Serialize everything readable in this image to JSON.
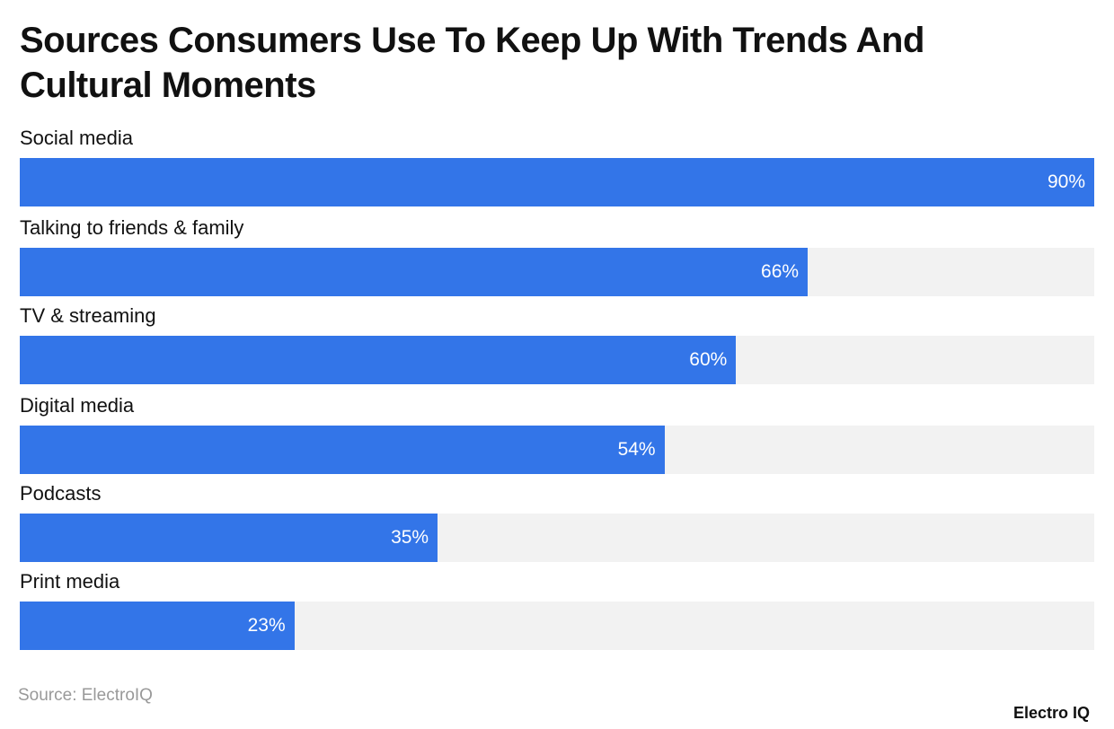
{
  "chart_data": {
    "type": "bar",
    "orientation": "horizontal",
    "title": "Sources Consumers Use To Keep Up With Trends And Cultural Moments",
    "categories": [
      "Social media",
      "Talking to friends & family",
      "TV & streaming",
      "Digital media",
      "Podcasts",
      "Print media"
    ],
    "values": [
      90,
      66,
      60,
      54,
      35,
      23
    ],
    "value_labels": [
      "90%",
      "66%",
      "60%",
      "54%",
      "35%",
      "23%"
    ],
    "xlim": [
      0,
      90
    ],
    "grid": false,
    "bar_color": "#3375e8",
    "track_color": "#f2f2f2"
  },
  "source": "Source: ElectroIQ",
  "logo": "Electro IQ"
}
